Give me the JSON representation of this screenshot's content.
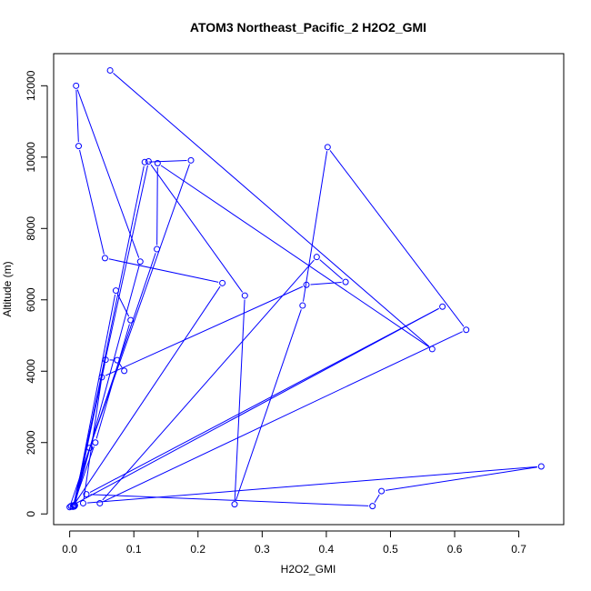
{
  "chart_data": {
    "type": "line",
    "title": "ATOM3 Northeast_Pacific_2 H2O2_GMI",
    "xlabel": "H2O2_GMI",
    "ylabel": "Altitude (m)",
    "xlim": [
      -0.025,
      0.77
    ],
    "ylim": [
      -300,
      12900
    ],
    "xticks": [
      0.0,
      0.1,
      0.2,
      0.3,
      0.4,
      0.5,
      0.6,
      0.7
    ],
    "xtick_labels": [
      "0.0",
      "0.1",
      "0.2",
      "0.3",
      "0.4",
      "0.5",
      "0.6",
      "0.7"
    ],
    "yticks": [
      0,
      2000,
      4000,
      6000,
      8000,
      10000,
      12000
    ],
    "ytick_labels": [
      "0",
      "2000",
      "4000",
      "6000",
      "8000",
      "10000",
      "12000"
    ],
    "grid": false,
    "series": [
      {
        "color": "#0000ff",
        "markers": "open-circle",
        "x": [
          0.063,
          0.565,
          0.137,
          0.136,
          0.0,
          0.008,
          0.117,
          0.189,
          0.031,
          0.005,
          0.04,
          0.095,
          0.072,
          0.007,
          0.11,
          0.01,
          0.014,
          0.055,
          0.238,
          0.006,
          0.123,
          0.273,
          0.257,
          0.363,
          0.402,
          0.618,
          0.047,
          0.385,
          0.43,
          0.369,
          0.05,
          0.021,
          0.735,
          0.486,
          0.472,
          0.026,
          0.581,
          0.002,
          0.008,
          0.056,
          0.074,
          0.085
        ],
        "y": [
          12430,
          4620,
          9830,
          7420,
          190,
          230,
          9860,
          9910,
          1850,
          200,
          2000,
          5430,
          6260,
          210,
          7070,
          12000,
          10310,
          7170,
          6470,
          240,
          9880,
          6120,
          270,
          5840,
          10280,
          5160,
          300,
          7200,
          6500,
          6420,
          3830,
          300,
          1330,
          640,
          220,
          550,
          5810,
          220,
          250,
          4320,
          4310,
          4010
        ]
      }
    ]
  }
}
